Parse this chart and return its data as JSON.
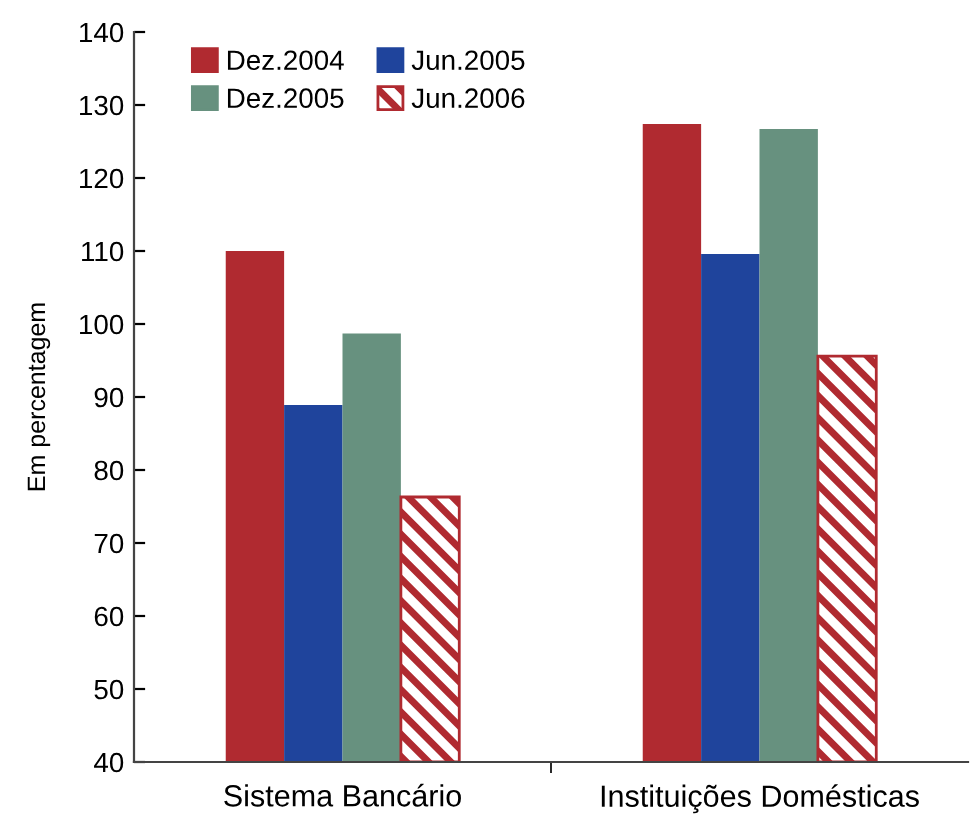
{
  "chart_data": {
    "type": "bar",
    "ylabel": "Em percentagem",
    "categories": [
      "Sistema Bancário",
      "Instituições Domésticas"
    ],
    "series": [
      {
        "name": "Dez.2004",
        "color": "#b02a30",
        "values": [
          110.0,
          127.4
        ]
      },
      {
        "name": "Jun.2005",
        "color": "#1f449c",
        "values": [
          88.9,
          109.6
        ]
      },
      {
        "name": "Dez.2005",
        "color": "#67917f",
        "values": [
          98.7,
          126.7
        ]
      },
      {
        "name": "Jun.2006",
        "color": "#b02a30",
        "values": [
          76.3,
          95.6
        ]
      }
    ],
    "ylim": [
      40,
      140
    ],
    "yticks": [
      40,
      50,
      60,
      70,
      80,
      90,
      100,
      110,
      120,
      130,
      140
    ],
    "grid": false,
    "legend": "top left"
  }
}
